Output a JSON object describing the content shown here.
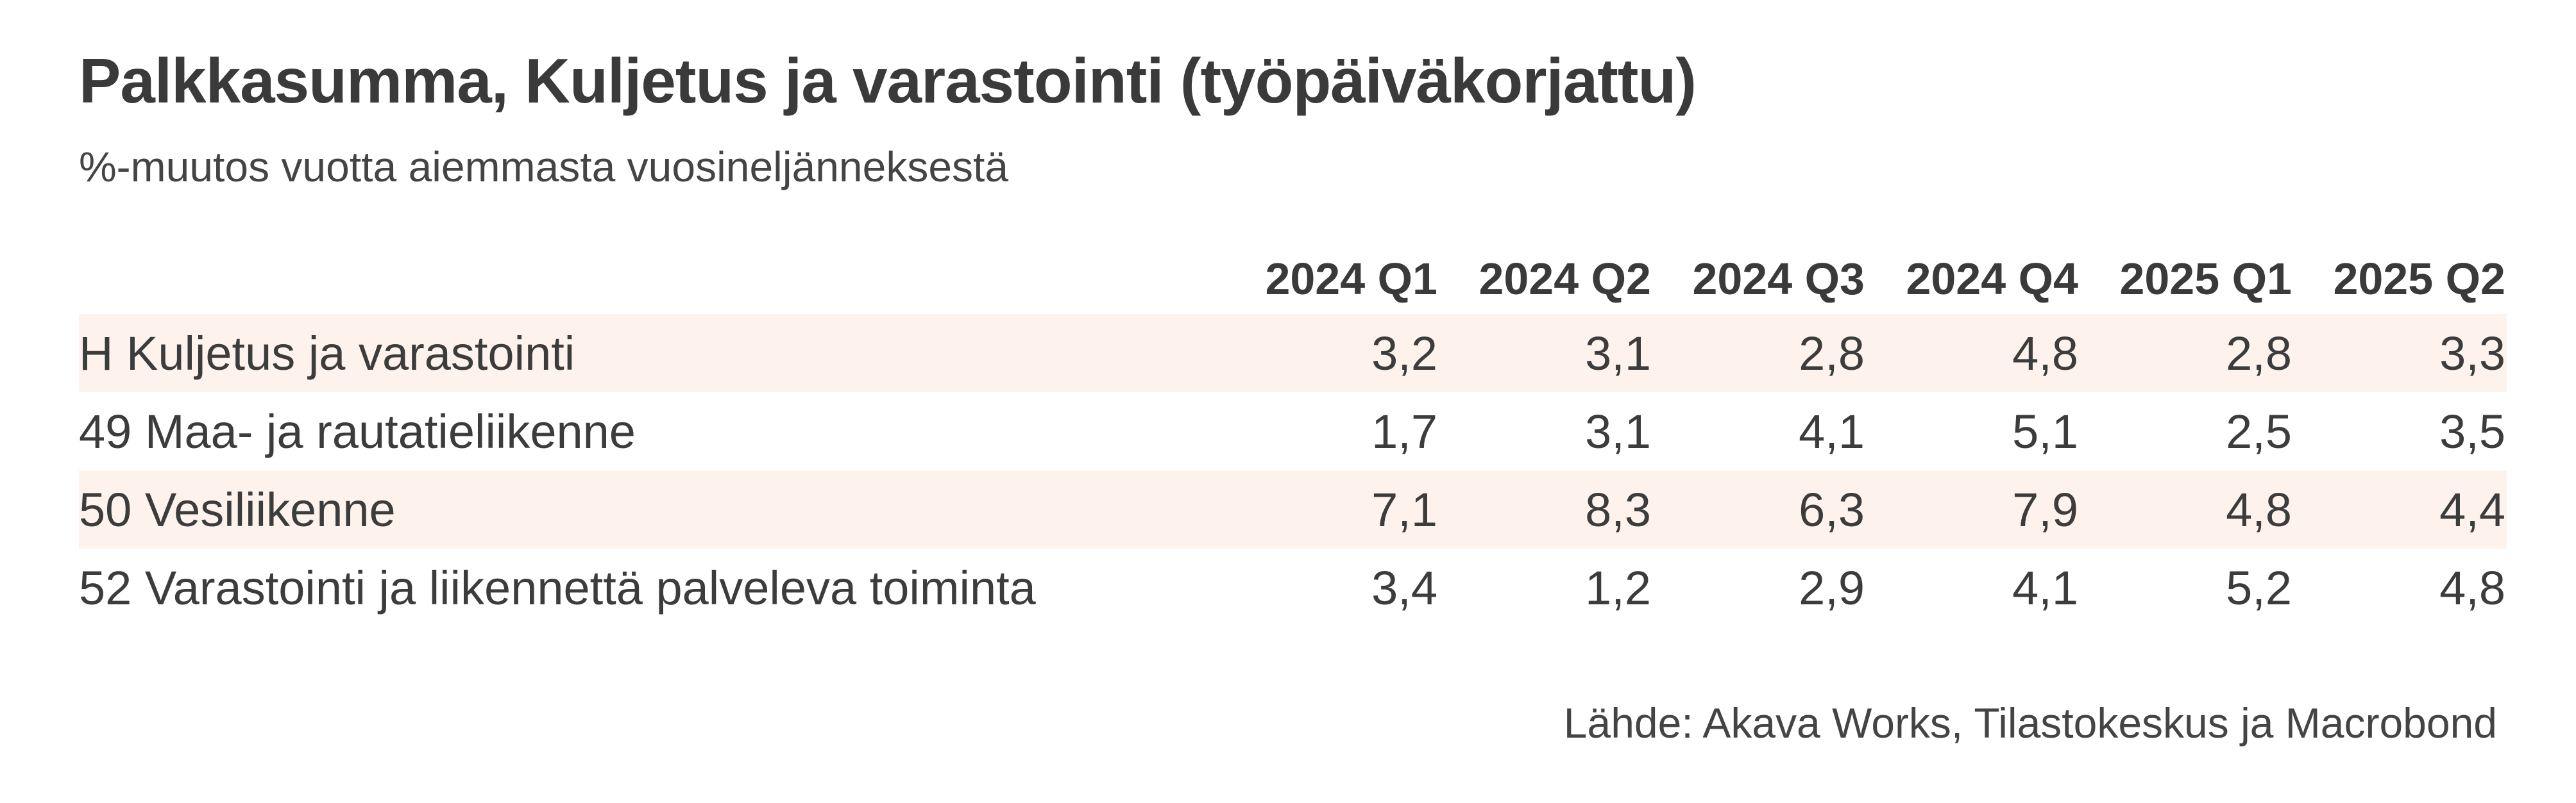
{
  "chart_data": {
    "type": "table",
    "title": "Palkkasumma, Kuljetus ja varastointi (työpäiväkorjattu)",
    "subtitle": "%-muutos vuotta aiemmasta vuosineljänneksestä",
    "columns": [
      "2024 Q1",
      "2024 Q2",
      "2024 Q3",
      "2024 Q4",
      "2025 Q1",
      "2025 Q2"
    ],
    "rows": [
      {
        "label": "H Kuljetus ja varastointi",
        "values": [
          "3,2",
          "3,1",
          "2,8",
          "4,8",
          "2,8",
          "3,3"
        ]
      },
      {
        "label": "49 Maa- ja rautatieliikenne",
        "values": [
          "1,7",
          "3,1",
          "4,1",
          "5,1",
          "2,5",
          "3,5"
        ]
      },
      {
        "label": "50 Vesiliikenne",
        "values": [
          "7,1",
          "8,3",
          "6,3",
          "7,9",
          "4,8",
          "4,4"
        ]
      },
      {
        "label": "52 Varastointi ja liikennettä palveleva toiminta",
        "values": [
          "3,4",
          "1,2",
          "2,9",
          "4,1",
          "5,2",
          "4,8"
        ]
      }
    ],
    "source": "Lähde: Akava Works, Tilastokeskus ja Macrobond",
    "colors": {
      "row_shade": "#fdf3ec",
      "text": "#3c3c3c"
    }
  }
}
